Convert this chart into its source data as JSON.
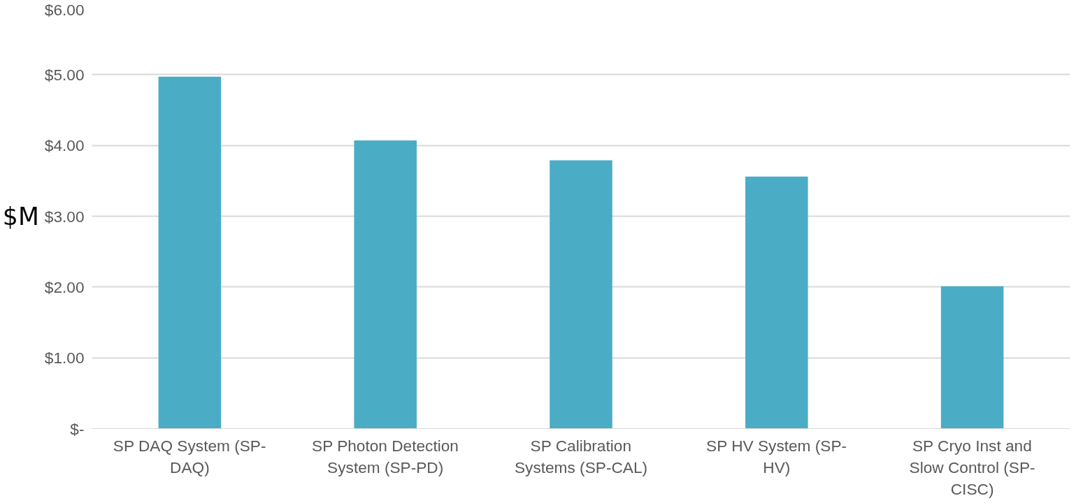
{
  "chart_data": {
    "type": "bar",
    "ylabel": "$M",
    "categories": [
      "SP DAQ System (SP-DAQ)",
      "SP Photon Detection System (SP-PD)",
      "SP Calibration Systems (SP-CAL)",
      "SP HV System (SP-HV)",
      "SP Cryo Inst and Slow Control (SP-CISC)"
    ],
    "values": [
      4.97,
      4.07,
      3.79,
      3.56,
      2.01
    ],
    "color": "#4bacc6",
    "ylim": [
      0,
      6
    ],
    "yticks": [
      {
        "value": 0,
        "label": "$-"
      },
      {
        "value": 1,
        "label": "$1.00"
      },
      {
        "value": 2,
        "label": "$2.00"
      },
      {
        "value": 3,
        "label": "$3.00"
      },
      {
        "value": 4,
        "label": "$4.00"
      },
      {
        "value": 5,
        "label": "$5.00"
      },
      {
        "value": 6,
        "label": "$6.00"
      }
    ],
    "grid": "y"
  }
}
